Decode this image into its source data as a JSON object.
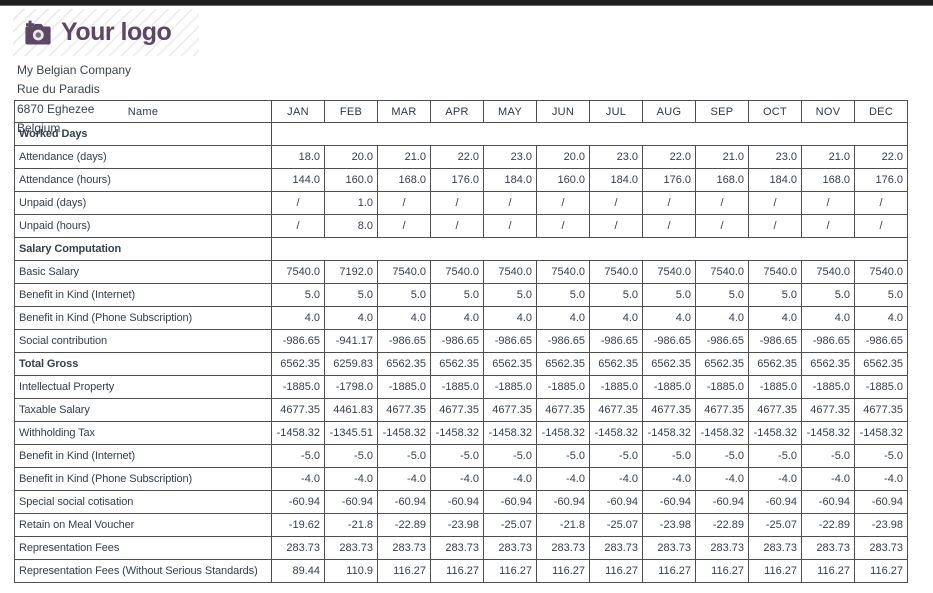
{
  "logo": {
    "text": "Your logo",
    "color": "#5d4767",
    "icon": "camera-plus-icon"
  },
  "company": {
    "name": "My Belgian Company",
    "street": "Rue du Paradis",
    "city": "6870 Eghezee",
    "country": "Belgium"
  },
  "table": {
    "name_header": "Name",
    "months": [
      "JAN",
      "FEB",
      "MAR",
      "APR",
      "MAY",
      "JUN",
      "JUL",
      "AUG",
      "SEP",
      "OCT",
      "NOV",
      "DEC"
    ],
    "sections": [
      {
        "title": "Worked Days",
        "rows": [
          {
            "label": "Attendance (days)",
            "bold": false,
            "values": [
              "18.0",
              "20.0",
              "21.0",
              "22.0",
              "23.0",
              "20.0",
              "23.0",
              "22.0",
              "21.0",
              "23.0",
              "21.0",
              "22.0"
            ]
          },
          {
            "label": "Attendance (hours)",
            "bold": false,
            "values": [
              "144.0",
              "160.0",
              "168.0",
              "176.0",
              "184.0",
              "160.0",
              "184.0",
              "176.0",
              "168.0",
              "184.0",
              "168.0",
              "176.0"
            ]
          },
          {
            "label": "Unpaid (days)",
            "bold": false,
            "values": [
              "/",
              "1.0",
              "/",
              "/",
              "/",
              "/",
              "/",
              "/",
              "/",
              "/",
              "/",
              "/"
            ]
          },
          {
            "label": "Unpaid (hours)",
            "bold": false,
            "values": [
              "/",
              "8.0",
              "/",
              "/",
              "/",
              "/",
              "/",
              "/",
              "/",
              "/",
              "/",
              "/"
            ]
          }
        ]
      },
      {
        "title": "Salary Computation",
        "rows": [
          {
            "label": "Basic Salary",
            "bold": false,
            "values": [
              "7540.0",
              "7192.0",
              "7540.0",
              "7540.0",
              "7540.0",
              "7540.0",
              "7540.0",
              "7540.0",
              "7540.0",
              "7540.0",
              "7540.0",
              "7540.0"
            ]
          },
          {
            "label": "Benefit in Kind (Internet)",
            "bold": false,
            "values": [
              "5.0",
              "5.0",
              "5.0",
              "5.0",
              "5.0",
              "5.0",
              "5.0",
              "5.0",
              "5.0",
              "5.0",
              "5.0",
              "5.0"
            ]
          },
          {
            "label": "Benefit in Kind (Phone Subscription)",
            "bold": false,
            "values": [
              "4.0",
              "4.0",
              "4.0",
              "4.0",
              "4.0",
              "4.0",
              "4.0",
              "4.0",
              "4.0",
              "4.0",
              "4.0",
              "4.0"
            ]
          },
          {
            "label": "Social contribution",
            "bold": false,
            "values": [
              "-986.65",
              "-941.17",
              "-986.65",
              "-986.65",
              "-986.65",
              "-986.65",
              "-986.65",
              "-986.65",
              "-986.65",
              "-986.65",
              "-986.65",
              "-986.65"
            ]
          },
          {
            "label": "Total Gross",
            "bold": true,
            "values": [
              "6562.35",
              "6259.83",
              "6562.35",
              "6562.35",
              "6562.35",
              "6562.35",
              "6562.35",
              "6562.35",
              "6562.35",
              "6562.35",
              "6562.35",
              "6562.35"
            ]
          },
          {
            "label": "Intellectual Property",
            "bold": false,
            "values": [
              "-1885.0",
              "-1798.0",
              "-1885.0",
              "-1885.0",
              "-1885.0",
              "-1885.0",
              "-1885.0",
              "-1885.0",
              "-1885.0",
              "-1885.0",
              "-1885.0",
              "-1885.0"
            ]
          },
          {
            "label": "Taxable Salary",
            "bold": false,
            "values": [
              "4677.35",
              "4461.83",
              "4677.35",
              "4677.35",
              "4677.35",
              "4677.35",
              "4677.35",
              "4677.35",
              "4677.35",
              "4677.35",
              "4677.35",
              "4677.35"
            ]
          },
          {
            "label": "Withholding Tax",
            "bold": false,
            "values": [
              "-1458.32",
              "-1345.51",
              "-1458.32",
              "-1458.32",
              "-1458.32",
              "-1458.32",
              "-1458.32",
              "-1458.32",
              "-1458.32",
              "-1458.32",
              "-1458.32",
              "-1458.32"
            ]
          },
          {
            "label": "Benefit in Kind (Internet)",
            "bold": false,
            "values": [
              "-5.0",
              "-5.0",
              "-5.0",
              "-5.0",
              "-5.0",
              "-5.0",
              "-5.0",
              "-5.0",
              "-5.0",
              "-5.0",
              "-5.0",
              "-5.0"
            ]
          },
          {
            "label": "Benefit in Kind (Phone Subscription)",
            "bold": false,
            "values": [
              "-4.0",
              "-4.0",
              "-4.0",
              "-4.0",
              "-4.0",
              "-4.0",
              "-4.0",
              "-4.0",
              "-4.0",
              "-4.0",
              "-4.0",
              "-4.0"
            ]
          },
          {
            "label": "Special social cotisation",
            "bold": false,
            "values": [
              "-60.94",
              "-60.94",
              "-60.94",
              "-60.94",
              "-60.94",
              "-60.94",
              "-60.94",
              "-60.94",
              "-60.94",
              "-60.94",
              "-60.94",
              "-60.94"
            ]
          },
          {
            "label": "Retain on Meal Voucher",
            "bold": false,
            "values": [
              "-19.62",
              "-21.8",
              "-22.89",
              "-23.98",
              "-25.07",
              "-21.8",
              "-25.07",
              "-23.98",
              "-22.89",
              "-25.07",
              "-22.89",
              "-23.98"
            ]
          },
          {
            "label": "Representation Fees",
            "bold": false,
            "values": [
              "283.73",
              "283.73",
              "283.73",
              "283.73",
              "283.73",
              "283.73",
              "283.73",
              "283.73",
              "283.73",
              "283.73",
              "283.73",
              "283.73"
            ]
          },
          {
            "label": "Representation Fees (Without Serious Standards)",
            "bold": false,
            "values": [
              "89.44",
              "110.9",
              "116.27",
              "116.27",
              "116.27",
              "116.27",
              "116.27",
              "116.27",
              "116.27",
              "116.27",
              "116.27",
              "116.27"
            ]
          }
        ]
      }
    ]
  }
}
